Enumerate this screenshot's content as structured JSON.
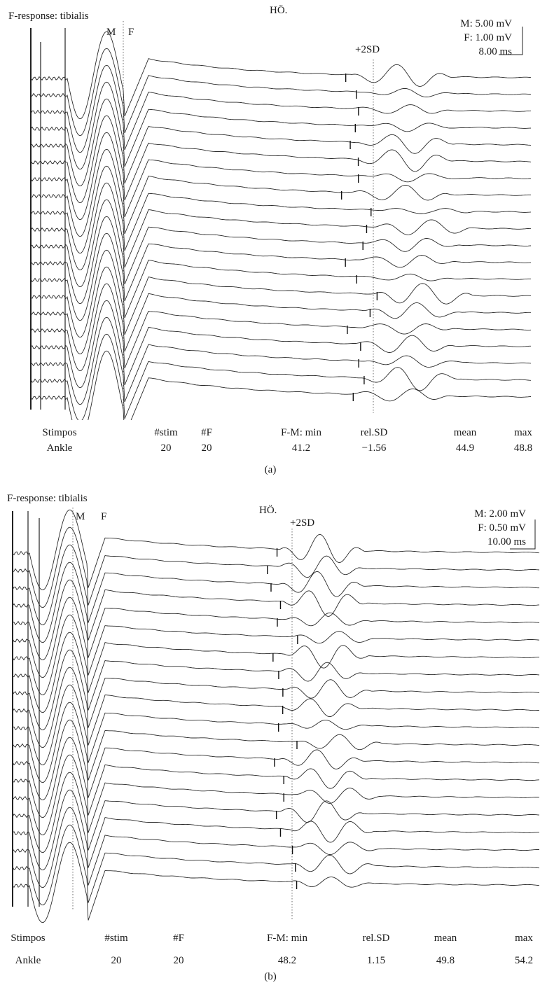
{
  "figure": {
    "panels": [
      {
        "caption": "(a)",
        "title": "F-response: tibialis",
        "patient": "HÖ.",
        "marker_m": "M",
        "marker_f": "F",
        "sd_label": "+2SD",
        "scale": {
          "m": "M: 5.00 mV",
          "f": "F: 1.00 mV",
          "time": "8.00 ms"
        },
        "stats_headers": [
          "Stimpos",
          "#stim",
          "#F",
          "F-M: min",
          "rel.SD",
          "mean",
          "max"
        ],
        "stats_values": [
          "Ankle",
          "20",
          "20",
          "41.2",
          "−1.56",
          "44.9",
          "48.8"
        ]
      },
      {
        "caption": "(b)",
        "title": "F-response: tibialis",
        "patient": "HÖ.",
        "marker_m": "M",
        "marker_f": "F",
        "sd_label": "+2SD",
        "scale": {
          "m": "M: 2.00 mV",
          "f": "F: 0.50 mV",
          "time": "10.00 ms"
        },
        "stats_headers": [
          "Stimpos",
          "#stim",
          "#F",
          "F-M: min",
          "rel.SD",
          "mean",
          "max"
        ],
        "stats_values": [
          "Ankle",
          "20",
          "20",
          "48.2",
          "1.15",
          "49.8",
          "54.2"
        ]
      }
    ]
  },
  "chart_data": [
    {
      "type": "line",
      "title": "F-response: tibialis",
      "trace_count": 20,
      "m_scale_mv": 5.0,
      "f_scale_mv": 1.0,
      "time_scale_ms": 8.0,
      "stats": {
        "stimpos": "Ankle",
        "n_stim": 20,
        "n_f": 20,
        "f_m_min": 41.2,
        "rel_sd": -1.56,
        "mean": 44.9,
        "max": 48.8
      }
    },
    {
      "type": "line",
      "title": "F-response: tibialis",
      "trace_count": 20,
      "m_scale_mv": 2.0,
      "f_scale_mv": 0.5,
      "time_scale_ms": 10.0,
      "stats": {
        "stimpos": "Ankle",
        "n_stim": 20,
        "n_f": 20,
        "f_m_min": 48.2,
        "rel_sd": 1.15,
        "mean": 49.8,
        "max": 54.2
      }
    }
  ]
}
